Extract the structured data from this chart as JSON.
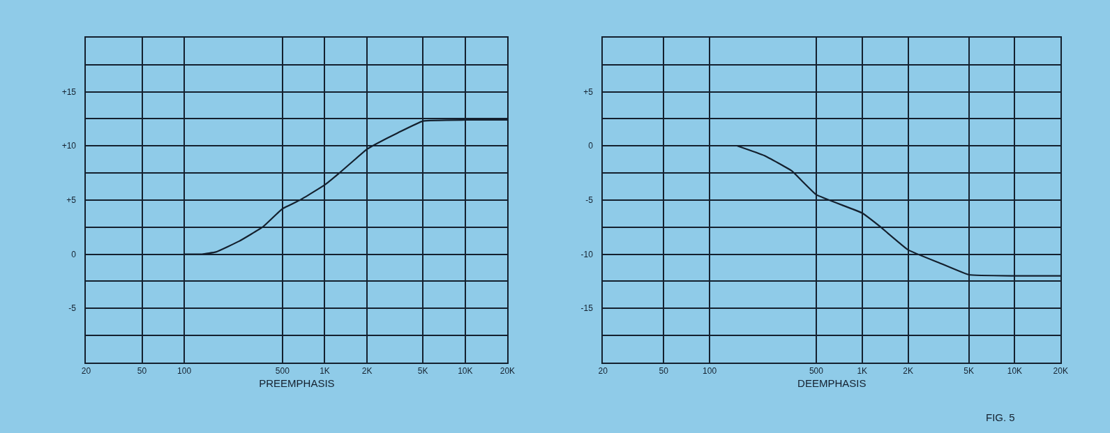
{
  "chart_data": [
    {
      "type": "line",
      "xlabel": "PREEMPHASIS",
      "log": "x",
      "grid": true,
      "marker": "none",
      "line_style": "solid",
      "xlim": [
        20,
        20000
      ],
      "xticks": [
        20,
        50,
        100,
        500,
        {
          "value": 1000,
          "label": "1K"
        },
        {
          "value": 2000,
          "label": "2K"
        },
        {
          "value": 5000,
          "label": "5K"
        },
        {
          "value": 10000,
          "label": "10K"
        },
        {
          "value": 20000,
          "label": "20K"
        }
      ],
      "ylim": [
        -10,
        20
      ],
      "yticks": [
        {
          "value": -7.5,
          "label": null
        },
        {
          "value": -5,
          "label": "-5"
        },
        {
          "value": -2.5,
          "label": null
        },
        0,
        {
          "value": 2.5,
          "label": null
        },
        {
          "value": 5,
          "label": "+5"
        },
        {
          "value": 7.5,
          "label": null
        },
        {
          "value": 10,
          "label": "+10"
        },
        {
          "value": 12.5,
          "label": null
        },
        {
          "value": 15,
          "label": "+15"
        },
        {
          "value": 17.5,
          "label": null
        }
      ],
      "series": [
        {
          "color": "#14202e",
          "x": [
            100,
            134,
            168,
            246,
            361,
            500,
            667,
            1000,
            1245,
            2000,
            2330,
            3300,
            5000,
            10000,
            20000
          ],
          "values": [
            0,
            0,
            0.2,
            1.2,
            2.5,
            4.2,
            5.0,
            6.4,
            7.4,
            9.7,
            10.2,
            11.2,
            12.3,
            12.4,
            12.4
          ]
        }
      ]
    },
    {
      "type": "line",
      "xlabel": "DEEMPHASIS",
      "log": "x",
      "grid": true,
      "marker": "none",
      "line_style": "solid",
      "xlim": [
        20,
        20000
      ],
      "xticks": [
        20,
        50,
        100,
        500,
        {
          "value": 1000,
          "label": "1K"
        },
        {
          "value": 2000,
          "label": "2K"
        },
        {
          "value": 5000,
          "label": "5K"
        },
        {
          "value": 10000,
          "label": "10K"
        },
        {
          "value": 20000,
          "label": "20K"
        }
      ],
      "ylim": [
        -20,
        10
      ],
      "yticks": [
        {
          "value": -17.5,
          "label": null
        },
        {
          "value": -15,
          "label": "-15"
        },
        {
          "value": -12.5,
          "label": null
        },
        {
          "value": -10,
          "label": "-10"
        },
        {
          "value": -7.5,
          "label": null
        },
        {
          "value": -5,
          "label": "-5"
        },
        {
          "value": -2.5,
          "label": null
        },
        0,
        {
          "value": 2.5,
          "label": null
        },
        {
          "value": 5,
          "label": "+5"
        },
        {
          "value": 7.5,
          "label": null
        }
      ],
      "annotations": [
        "FIG. 5"
      ],
      "series": [
        {
          "color": "#14202e",
          "x": [
            152,
            229,
            345,
            500,
            1000,
            1297,
            2000,
            3200,
            5000,
            10000,
            20000
          ],
          "values": [
            0,
            -0.9,
            -2.3,
            -4.5,
            -6.2,
            -7.4,
            -9.6,
            -10.8,
            -11.9,
            -12.0,
            -12.0
          ]
        }
      ]
    }
  ]
}
